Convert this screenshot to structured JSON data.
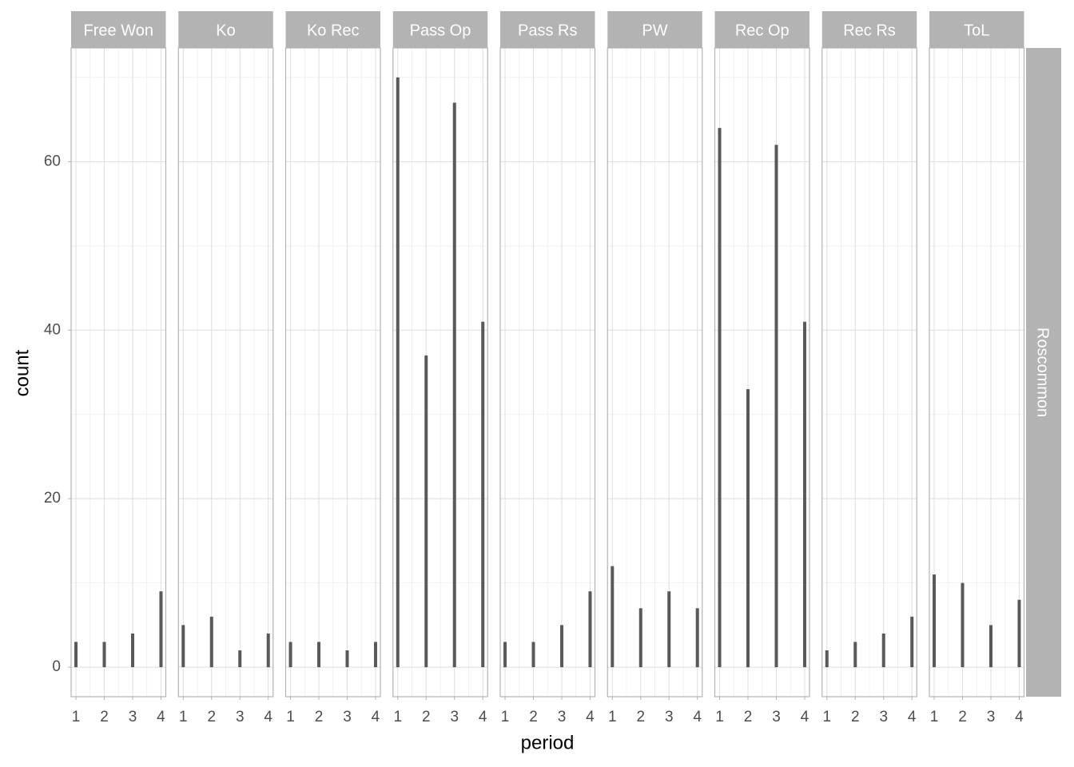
{
  "chart_data": {
    "type": "bar",
    "x_label": "period",
    "y_label": "count",
    "row_strip": "Roscommon",
    "x": [
      1,
      2,
      3,
      4
    ],
    "xlim": [
      0.83,
      4.17
    ],
    "xticks": [
      1,
      2,
      3,
      4
    ],
    "ylim": [
      -3.5,
      73.5
    ],
    "yticks": [
      0,
      20,
      40,
      60
    ],
    "grid": true,
    "color": "#595959",
    "facets": [
      {
        "title": "Free Won",
        "values": [
          3,
          3,
          4,
          9
        ]
      },
      {
        "title": "Ko",
        "values": [
          5,
          6,
          2,
          4
        ]
      },
      {
        "title": "Ko Rec",
        "values": [
          3,
          3,
          2,
          3
        ]
      },
      {
        "title": "Pass Op",
        "values": [
          70,
          37,
          67,
          41
        ]
      },
      {
        "title": "Pass Rs",
        "values": [
          3,
          3,
          5,
          9
        ]
      },
      {
        "title": "PW",
        "values": [
          12,
          7,
          9,
          7
        ]
      },
      {
        "title": "Rec Op",
        "values": [
          64,
          33,
          62,
          41
        ]
      },
      {
        "title": "Rec Rs",
        "values": [
          2,
          3,
          4,
          6
        ]
      },
      {
        "title": "ToL",
        "values": [
          11,
          10,
          5,
          8
        ]
      }
    ]
  }
}
